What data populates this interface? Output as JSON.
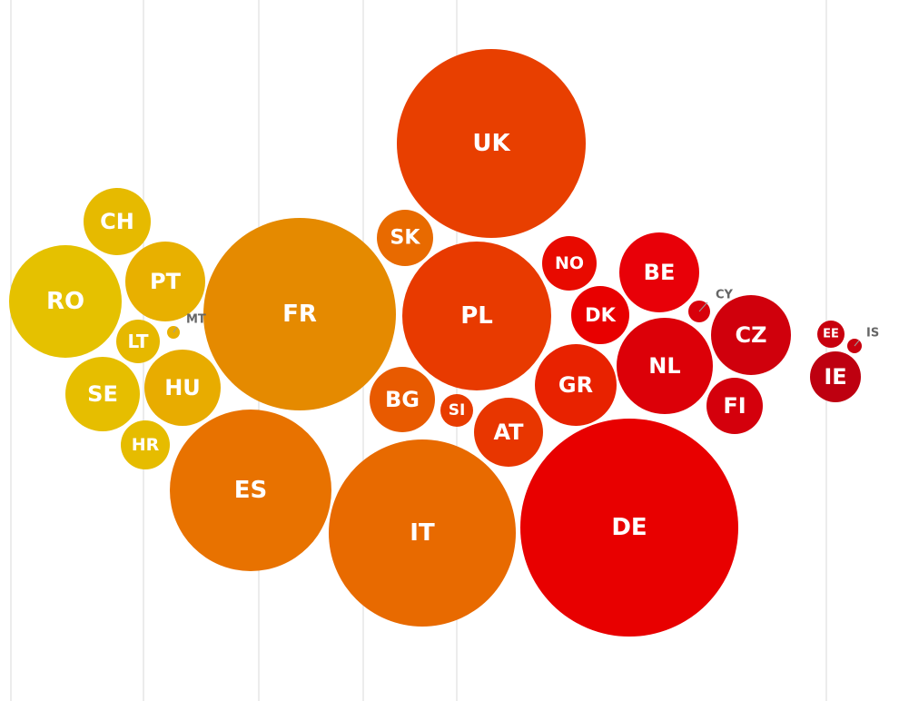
{
  "chart_data": {
    "type": "bubble",
    "grid": true,
    "colors": {
      "yellow": "#E5BF00",
      "amber": "#E8A800",
      "orange": "#E58A00",
      "dark_orange": "#E86A00",
      "orange_red": "#E84500",
      "red_orange": "#E82A00",
      "red": "#E80000",
      "deep_red": "#D00010",
      "crimson": "#C0000E"
    },
    "bubbles": [
      {
        "label": "RO",
        "color": "#E5C100",
        "label_inside": true
      },
      {
        "label": "CH",
        "color": "#E6BA00",
        "label_inside": true
      },
      {
        "label": "PT",
        "color": "#E8B000",
        "label_inside": true
      },
      {
        "label": "LT",
        "color": "#E6B800",
        "label_inside": true
      },
      {
        "label": "MT",
        "color": "#E8B000",
        "label_inside": false
      },
      {
        "label": "SE",
        "color": "#E6BE00",
        "label_inside": true
      },
      {
        "label": "HU",
        "color": "#E8AC00",
        "label_inside": true
      },
      {
        "label": "HR",
        "color": "#E6BC00",
        "label_inside": true
      },
      {
        "label": "FR",
        "color": "#E58A00",
        "label_inside": true
      },
      {
        "label": "ES",
        "color": "#E87200",
        "label_inside": true
      },
      {
        "label": "IT",
        "color": "#E86A00",
        "label_inside": true
      },
      {
        "label": "SK",
        "color": "#E86A00",
        "label_inside": true
      },
      {
        "label": "BG",
        "color": "#E85A00",
        "label_inside": true
      },
      {
        "label": "SI",
        "color": "#E83C00",
        "label_inside": true
      },
      {
        "label": "UK",
        "color": "#E83F00",
        "label_inside": true
      },
      {
        "label": "PL",
        "color": "#E83A00",
        "label_inside": true
      },
      {
        "label": "AT",
        "color": "#E83600",
        "label_inside": true
      },
      {
        "label": "GR",
        "color": "#E82200",
        "label_inside": true
      },
      {
        "label": "NO",
        "color": "#E80A00",
        "label_inside": true
      },
      {
        "label": "DK",
        "color": "#E80000",
        "label_inside": true
      },
      {
        "label": "BE",
        "color": "#E80008",
        "label_inside": true
      },
      {
        "label": "NL",
        "color": "#DC0008",
        "label_inside": true
      },
      {
        "label": "DE",
        "color": "#E80000",
        "label_inside": true
      },
      {
        "label": "CY",
        "color": "#D8000A",
        "label_inside": false
      },
      {
        "label": "CZ",
        "color": "#D0000C",
        "label_inside": true
      },
      {
        "label": "FI",
        "color": "#D4000C",
        "label_inside": true
      },
      {
        "label": "EE",
        "color": "#C8000E",
        "label_inside": true
      },
      {
        "label": "IS",
        "color": "#C8000E",
        "label_inside": false
      },
      {
        "label": "IE",
        "color": "#BE0010",
        "label_inside": true
      }
    ]
  }
}
